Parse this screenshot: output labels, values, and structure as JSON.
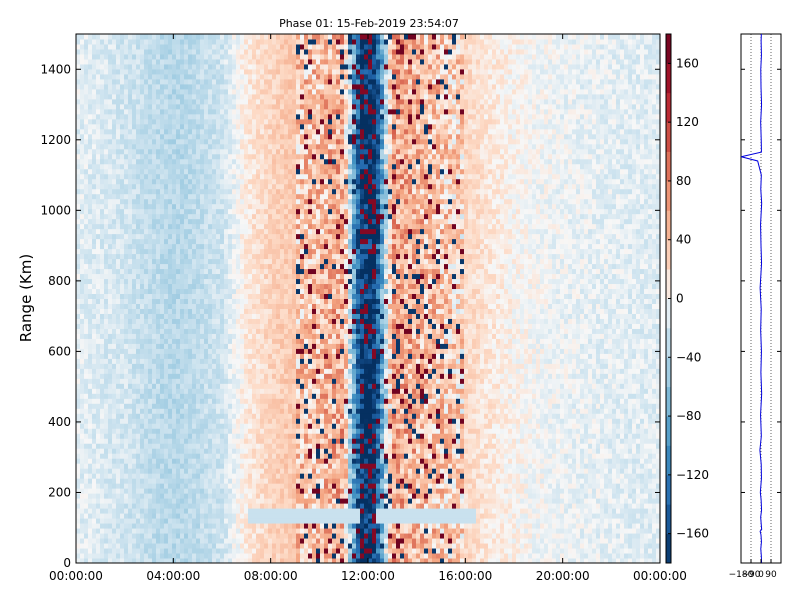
{
  "chart_data": [
    {
      "type": "heatmap",
      "title": "Phase 01: 15-Feb-2019 23:54:07",
      "xlabel": "",
      "ylabel": "Range (Km)",
      "x_tick_labels": [
        "00:00:00",
        "04:00:00",
        "08:00:00",
        "12:00:00",
        "16:00:00",
        "20:00:00",
        "00:00:00"
      ],
      "x_range_hours": [
        0,
        24
      ],
      "ylim": [
        0,
        1500
      ],
      "y_ticks": [
        0,
        200,
        400,
        600,
        800,
        1000,
        1200,
        1400
      ],
      "colorbar": {
        "ticks": [
          160,
          120,
          80,
          40,
          0,
          -40,
          -80,
          -120,
          -160
        ],
        "range": [
          -180,
          180
        ],
        "colormap": "diverging blue-white-red",
        "low_color": "#053061",
        "mid_color": "#f7f7f7",
        "high_color": "#67001f"
      },
      "phase_profile_by_time": {
        "hours": [
          0,
          1,
          2,
          3,
          4,
          5,
          6,
          7,
          8,
          9,
          10,
          11,
          11.7,
          12.0,
          12.3,
          13,
          14,
          15,
          16,
          17,
          18,
          19,
          20,
          21,
          22,
          23,
          24
        ],
        "mean_phase_deg": [
          -10,
          -15,
          -20,
          -30,
          -38,
          -32,
          -22,
          10,
          25,
          35,
          40,
          55,
          -175,
          -178,
          -175,
          60,
          45,
          35,
          22,
          12,
          3,
          -2,
          -6,
          -8,
          -10,
          -12,
          -12
        ]
      },
      "grid": false,
      "legend": "none"
    },
    {
      "type": "line",
      "xlabel": "",
      "ylabel": "",
      "x_tick_labels": [
        "−180",
        "−90",
        "0",
        "90"
      ],
      "xlim": [
        -180,
        180
      ],
      "ylim": [
        0,
        1500
      ],
      "grid": true,
      "series": [
        {
          "color": "#0000dd",
          "x": [
            5,
            3,
            -2,
            4,
            0,
            -8,
            6,
            2,
            -3,
            5,
            1,
            -6,
            4,
            2,
            -10,
            3,
            -4,
            6,
            -1,
            4,
            -3,
            2,
            -8,
            5,
            0,
            -4,
            6,
            -2,
            3,
            -30,
            -178,
            4,
            2,
            -3,
            5,
            0,
            -2,
            4,
            1,
            3
          ],
          "y": [
            0,
            20,
            40,
            60,
            80,
            90,
            95,
            110,
            130,
            150,
            180,
            200,
            240,
            280,
            320,
            360,
            420,
            480,
            540,
            600,
            660,
            720,
            780,
            850,
            900,
            960,
            1020,
            1060,
            1100,
            1140,
            1152,
            1165,
            1200,
            1250,
            1300,
            1350,
            1400,
            1440,
            1480,
            1500
          ]
        }
      ]
    }
  ]
}
